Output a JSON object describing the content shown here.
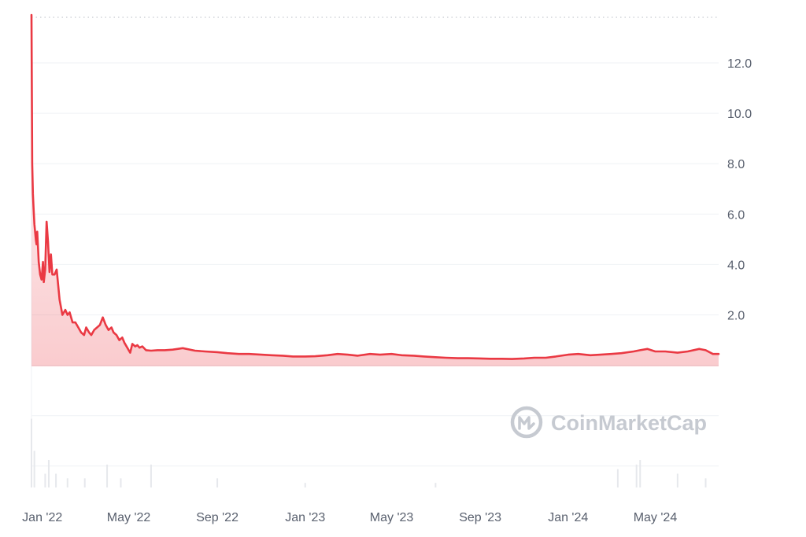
{
  "chart_data": {
    "type": "area",
    "title": "",
    "xlabel": "",
    "ylabel": "",
    "x_tick_labels": [
      "Jan '22",
      "May '22",
      "Sep '22",
      "Jan '23",
      "May '23",
      "Sep '23",
      "Jan '24",
      "May '24"
    ],
    "y_tick_labels": [
      "2.0",
      "4.0",
      "6.0",
      "8.0",
      "10.0",
      "12.0"
    ],
    "y_ticks": [
      2,
      4,
      6,
      8,
      10,
      12
    ],
    "ylim": [
      -4.8,
      13.9
    ],
    "xlim": [
      "2021-12-17",
      "2024-07-28"
    ],
    "grid": "horizontal",
    "legend": "none",
    "line_color": "#ea3943",
    "series": [
      {
        "x": [
          "2021-12-17",
          "2021-12-18",
          "2021-12-19",
          "2021-12-20",
          "2021-12-21",
          "2021-12-22",
          "2021-12-23",
          "2021-12-24",
          "2021-12-25",
          "2021-12-27",
          "2021-12-29",
          "2021-12-31",
          "2022-01-02",
          "2022-01-03",
          "2022-01-05",
          "2022-01-07",
          "2022-01-09",
          "2022-01-11",
          "2022-01-13",
          "2022-01-15",
          "2022-01-18",
          "2022-01-21",
          "2022-01-25",
          "2022-01-29",
          "2022-02-02",
          "2022-02-05",
          "2022-02-08",
          "2022-02-12",
          "2022-02-16",
          "2022-02-20",
          "2022-02-24",
          "2022-02-28",
          "2022-03-03",
          "2022-03-07",
          "2022-03-10",
          "2022-03-14",
          "2022-03-18",
          "2022-03-22",
          "2022-03-26",
          "2022-03-30",
          "2022-04-03",
          "2022-04-07",
          "2022-04-10",
          "2022-04-14",
          "2022-04-18",
          "2022-04-22",
          "2022-04-25",
          "2022-04-29",
          "2022-05-03",
          "2022-05-06",
          "2022-05-10",
          "2022-05-13",
          "2022-05-16",
          "2022-05-20",
          "2022-05-25",
          "2022-06-01",
          "2022-06-10",
          "2022-06-20",
          "2022-07-01",
          "2022-07-15",
          "2022-08-01",
          "2022-08-15",
          "2022-09-01",
          "2022-09-15",
          "2022-10-01",
          "2022-10-15",
          "2022-11-01",
          "2022-11-15",
          "2022-12-01",
          "2022-12-15",
          "2023-01-01",
          "2023-01-15",
          "2023-02-01",
          "2023-02-15",
          "2023-03-01",
          "2023-03-15",
          "2023-04-01",
          "2023-04-15",
          "2023-05-01",
          "2023-05-15",
          "2023-06-01",
          "2023-06-15",
          "2023-07-01",
          "2023-07-15",
          "2023-08-01",
          "2023-08-15",
          "2023-09-01",
          "2023-09-15",
          "2023-10-01",
          "2023-10-15",
          "2023-11-01",
          "2023-11-15",
          "2023-12-01",
          "2023-12-15",
          "2024-01-01",
          "2024-01-15",
          "2024-02-01",
          "2024-02-15",
          "2024-03-01",
          "2024-03-15",
          "2024-04-01",
          "2024-04-10",
          "2024-04-20",
          "2024-05-01",
          "2024-05-15",
          "2024-06-01",
          "2024-06-15",
          "2024-07-01",
          "2024-07-10",
          "2024-07-20",
          "2024-07-28"
        ],
        "y": [
          13.9,
          8.0,
          6.8,
          6.2,
          5.6,
          5.3,
          5.0,
          4.8,
          5.3,
          4.1,
          3.6,
          3.4,
          4.1,
          3.3,
          3.8,
          5.7,
          4.9,
          3.7,
          4.4,
          3.6,
          3.6,
          3.8,
          2.6,
          2.0,
          2.2,
          2.0,
          2.1,
          1.7,
          1.7,
          1.5,
          1.3,
          1.2,
          1.5,
          1.3,
          1.2,
          1.4,
          1.5,
          1.6,
          1.9,
          1.6,
          1.4,
          1.5,
          1.3,
          1.2,
          1.0,
          1.1,
          0.9,
          0.7,
          0.5,
          0.85,
          0.75,
          0.8,
          0.7,
          0.75,
          0.6,
          0.58,
          0.6,
          0.6,
          0.62,
          0.68,
          0.58,
          0.55,
          0.52,
          0.48,
          0.45,
          0.45,
          0.42,
          0.4,
          0.38,
          0.35,
          0.35,
          0.36,
          0.4,
          0.45,
          0.42,
          0.38,
          0.45,
          0.42,
          0.45,
          0.4,
          0.38,
          0.35,
          0.32,
          0.3,
          0.28,
          0.28,
          0.27,
          0.26,
          0.26,
          0.25,
          0.27,
          0.3,
          0.3,
          0.35,
          0.42,
          0.45,
          0.4,
          0.42,
          0.45,
          0.48,
          0.55,
          0.6,
          0.65,
          0.55,
          0.55,
          0.5,
          0.55,
          0.65,
          0.6,
          0.45,
          0.45
        ]
      }
    ],
    "volume_bars": [
      {
        "x": "2021-12-17",
        "v": 0.15
      },
      {
        "x": "2021-12-21",
        "v": 0.08
      },
      {
        "x": "2022-01-05",
        "v": 0.03
      },
      {
        "x": "2022-01-10",
        "v": 0.06
      },
      {
        "x": "2022-01-20",
        "v": 0.03
      },
      {
        "x": "2022-02-05",
        "v": 0.02
      },
      {
        "x": "2022-03-01",
        "v": 0.02
      },
      {
        "x": "2022-04-01",
        "v": 0.05
      },
      {
        "x": "2022-04-20",
        "v": 0.02
      },
      {
        "x": "2022-06-01",
        "v": 0.05
      },
      {
        "x": "2022-09-01",
        "v": 0.02
      },
      {
        "x": "2023-01-01",
        "v": 0.01
      },
      {
        "x": "2023-07-01",
        "v": 0.01
      },
      {
        "x": "2024-03-10",
        "v": 0.04
      },
      {
        "x": "2024-04-05",
        "v": 0.05
      },
      {
        "x": "2024-04-10",
        "v": 0.06
      },
      {
        "x": "2024-06-01",
        "v": 0.03
      },
      {
        "x": "2024-07-10",
        "v": 0.02
      }
    ]
  },
  "watermark": {
    "text": "CoinMarketCap",
    "icon": "coinmarketcap-logo-icon"
  }
}
